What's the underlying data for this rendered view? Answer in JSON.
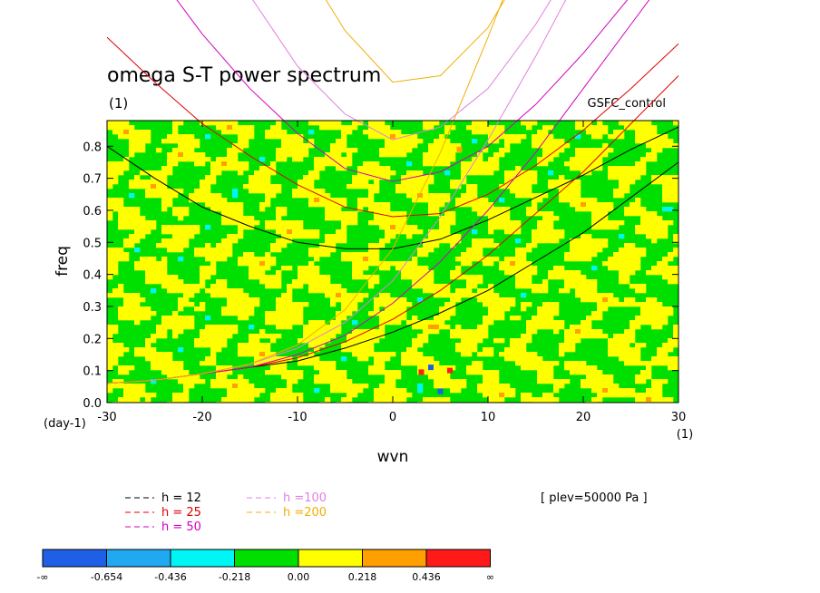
{
  "chart_data": {
    "type": "heatmap",
    "title": "omega S-T power spectrum",
    "subtitle_left": "(1)",
    "subtitle_right": "GSFC_control",
    "xlabel": "wvn",
    "ylabel": "freq",
    "xunit_right": "(1)",
    "yunit_left": "(day-1)",
    "xlim": [
      -30,
      30
    ],
    "ylim": [
      0.0,
      0.88
    ],
    "xticks": [
      -30,
      -20,
      -10,
      0,
      10,
      20,
      30
    ],
    "xtick_labels": [
      "-30",
      "-20",
      "-10",
      "0",
      "10",
      "20",
      "30"
    ],
    "yticks": [
      0.0,
      0.1,
      0.2,
      0.3,
      0.4,
      0.5,
      0.6,
      0.7,
      0.8
    ],
    "ytick_labels": [
      "0.0",
      "0.1",
      "0.2",
      "0.3",
      "0.4",
      "0.5",
      "0.6",
      "0.7",
      "0.8"
    ],
    "annotation": "[ plev=50000 Pa ]",
    "colorbar": {
      "colors": [
        "#1f5fe6",
        "#20a8f0",
        "#00f5f5",
        "#00e000",
        "#ffff00",
        "#ffa000",
        "#ff1a1a"
      ],
      "labels": [
        "-∞",
        "-0.654",
        "-0.436",
        "-0.218",
        "0.00",
        "0.218",
        "0.436",
        "∞"
      ]
    },
    "legend": [
      {
        "label": "h = 12",
        "color": "#000000"
      },
      {
        "label": "h = 25",
        "color": "#e00000"
      },
      {
        "label": "h = 50",
        "color": "#d000c0"
      },
      {
        "label": "h =100",
        "color": "#e080e0"
      },
      {
        "label": "h =200",
        "color": "#f0b000"
      }
    ],
    "series": [
      {
        "name": "h = 12",
        "color": "#000000",
        "curves": [
          {
            "x": [
              -30,
              -25,
              -20,
              -15,
              -10,
              -5,
              0,
              5,
              10,
              15,
              20,
              25,
              30
            ],
            "y": [
              0.8,
              0.7,
              0.61,
              0.55,
              0.5,
              0.48,
              0.48,
              0.51,
              0.57,
              0.64,
              0.71,
              0.79,
              0.86
            ]
          },
          {
            "x": [
              -30,
              -25,
              -20,
              -15,
              -10,
              -5,
              0,
              5,
              10,
              15,
              20,
              25,
              30
            ],
            "y": [
              0.06,
              0.07,
              0.09,
              0.11,
              0.13,
              0.17,
              0.22,
              0.28,
              0.35,
              0.44,
              0.53,
              0.64,
              0.75
            ]
          }
        ]
      },
      {
        "name": "h = 25",
        "color": "#e00000",
        "curves": [
          {
            "x": [
              -30,
              -25,
              -20,
              -15,
              -10,
              -5,
              0,
              5,
              10,
              15,
              20,
              25,
              30
            ],
            "y": [
              1.14,
              1.0,
              0.87,
              0.77,
              0.68,
              0.61,
              0.58,
              0.59,
              0.65,
              0.74,
              0.85,
              0.98,
              1.12
            ]
          },
          {
            "x": [
              -30,
              -25,
              -20,
              -15,
              -10,
              -5,
              0,
              5,
              10,
              15,
              20,
              25,
              30
            ],
            "y": [
              0.06,
              0.07,
              0.09,
              0.11,
              0.14,
              0.19,
              0.26,
              0.35,
              0.46,
              0.59,
              0.72,
              0.87,
              1.02
            ]
          }
        ]
      },
      {
        "name": "h = 50",
        "color": "#d000c0",
        "curves": [
          {
            "x": [
              -30,
              -25,
              -20,
              -15,
              -10,
              -5,
              0,
              5,
              10,
              15,
              20,
              25,
              30
            ],
            "y": [
              1.55,
              1.35,
              1.15,
              0.98,
              0.84,
              0.73,
              0.69,
              0.72,
              0.8,
              0.93,
              1.09,
              1.27,
              1.45
            ]
          },
          {
            "x": [
              -30,
              -25,
              -20,
              -15,
              -10,
              -5,
              0,
              5,
              10,
              15,
              20,
              25,
              30
            ],
            "y": [
              0.06,
              0.07,
              0.09,
              0.11,
              0.15,
              0.21,
              0.31,
              0.44,
              0.6,
              0.78,
              0.98,
              1.18,
              1.38
            ]
          }
        ]
      },
      {
        "name": "h =100",
        "color": "#e080e0",
        "curves": [
          {
            "x": [
              -30,
              -25,
              -20,
              -15,
              -10,
              -5,
              0,
              5,
              10,
              15,
              20,
              25
            ],
            "y": [
              2.1,
              1.8,
              1.52,
              1.27,
              1.05,
              0.9,
              0.82,
              0.86,
              0.98,
              1.18,
              1.42,
              1.7
            ]
          },
          {
            "x": [
              -30,
              -25,
              -20,
              -15,
              -10,
              -5,
              0,
              5,
              10,
              15,
              20
            ],
            "y": [
              0.06,
              0.07,
              0.09,
              0.12,
              0.17,
              0.25,
              0.38,
              0.58,
              0.82,
              1.08,
              1.36
            ]
          }
        ]
      },
      {
        "name": "h =200",
        "color": "#f0b000",
        "curves": [
          {
            "x": [
              -20,
              -15,
              -10,
              -5,
              0,
              5,
              10,
              15,
              20
            ],
            "y": [
              2.1,
              1.72,
              1.4,
              1.16,
              1.0,
              1.02,
              1.17,
              1.42,
              1.76
            ]
          },
          {
            "x": [
              -30,
              -25,
              -20,
              -15,
              -10,
              -5,
              0,
              5,
              10,
              15
            ],
            "y": [
              0.06,
              0.07,
              0.09,
              0.12,
              0.18,
              0.29,
              0.48,
              0.78,
              1.14,
              1.52
            ]
          }
        ]
      }
    ]
  }
}
